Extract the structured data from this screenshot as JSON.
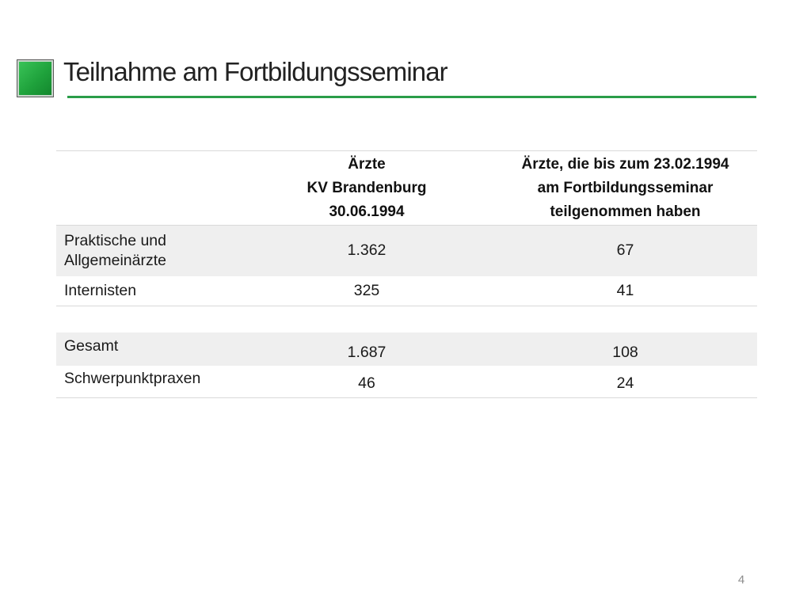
{
  "slide": {
    "title": "Teilnahme am Fortbildungsseminar",
    "page_number": "4",
    "accent_color": "#2a9d48"
  },
  "table": {
    "headers": {
      "col_a": [
        "Ärzte",
        "KV Brandenburg",
        "30.06.1994"
      ],
      "col_b": [
        "Ärzte, die bis zum 23.02.1994",
        "am Fortbildungsseminar",
        "teilgenommen haben"
      ]
    },
    "rows": [
      {
        "label": [
          "Praktische und",
          "Allgemeinärzte"
        ],
        "col_a": "1.362",
        "col_b": "67"
      },
      {
        "label": [
          "Internisten"
        ],
        "col_a": "325",
        "col_b": "41"
      },
      {
        "label": [
          "Gesamt"
        ],
        "col_a": "1.687",
        "col_b": "108"
      },
      {
        "label": [
          "Schwerpunktpraxen"
        ],
        "col_a": "46",
        "col_b": "24"
      }
    ]
  }
}
